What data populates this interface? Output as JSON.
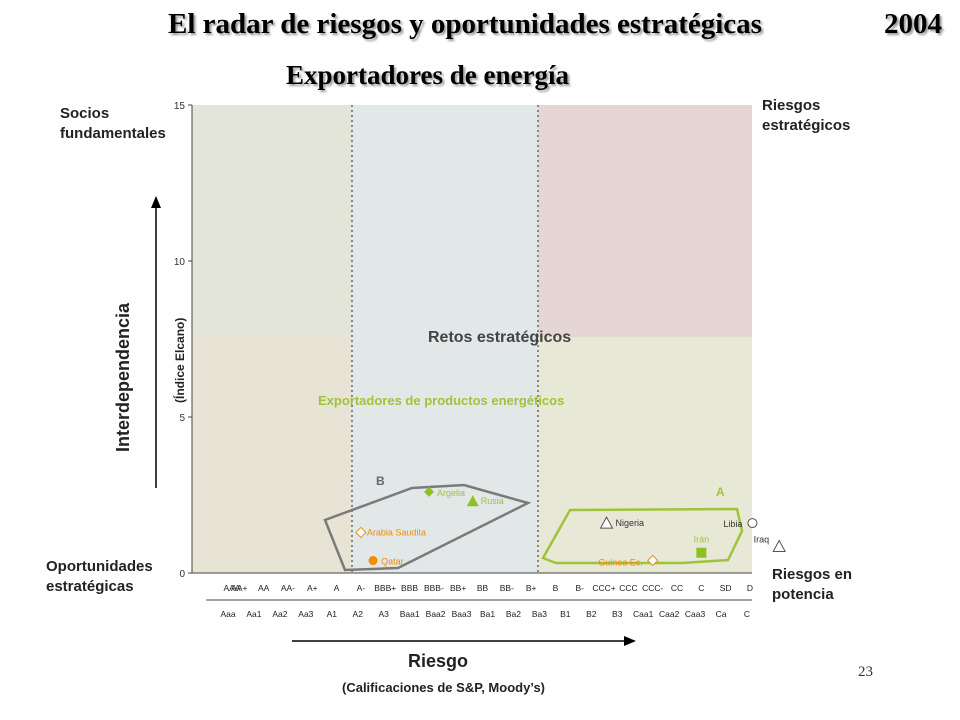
{
  "slide": {
    "title": "El radar de riesgos y oportunidades estratégicas",
    "year": "2004",
    "subtitle": "Exportadores de energía",
    "page_number": "23"
  },
  "quadrants": {
    "top_left": "Socios fundamentales",
    "top_right": "Riesgos estratégicos",
    "bottom_left": "Oportunidades estratégicas",
    "bottom_right": "Riesgos en potencia",
    "center": "Retos estratégicos"
  },
  "axes": {
    "y_title": "Interdependencia",
    "y_sub": "(Índice Elcano)",
    "x_title": "Riesgo",
    "x_sub": "(Calificaciones de S&P, Moody’s)"
  },
  "legend_label": "Exportadores de productos energéticos",
  "colors": {
    "region_green_gray": "#e2e5d7",
    "region_beige": "#e8e4d5",
    "region_blue_gray": "#e2e7e8",
    "region_pink": "#e6d6d3",
    "region_olive": "#e8e8d6",
    "group_b": "#7a7a7a",
    "group_a": "#9fc33b",
    "orange": "#f28c00",
    "green_marker": "#8fbf21",
    "label_green": "#9fc33b"
  },
  "chart_data": {
    "type": "scatter",
    "title": "Exportadores de energía",
    "xlabel": "Riesgo",
    "ylabel": "Interdependencia",
    "ylim": [
      0,
      15
    ],
    "yticks": [
      "0",
      "5",
      "10",
      "15"
    ],
    "sp_ratings": [
      "AAA",
      "AA+",
      "AA",
      "AA-",
      "A+",
      "A",
      "A-",
      "BBB+",
      "BBB",
      "BBB-",
      "BB+",
      "BB",
      "BB-",
      "B+",
      "B",
      "B-",
      "CCC+",
      "CCC",
      "CCC-",
      "CC",
      "C",
      "SD",
      "D"
    ],
    "moody_ratings": [
      "Aaa",
      "Aa1",
      "Aa2",
      "Aa3",
      "A1",
      "A2",
      "A3",
      "Baa1",
      "Baa2",
      "Baa3",
      "Ba1",
      "Ba2",
      "Ba3",
      "B1",
      "B2",
      "B3",
      "Caa1",
      "Caa2",
      "Caa3",
      "Ca",
      "C"
    ],
    "group_labels": [
      "B",
      "A"
    ],
    "points": [
      {
        "name": "Argelia",
        "x": 8.8,
        "y": 2.6,
        "marker": "diamond-filled",
        "color": "green_marker"
      },
      {
        "name": "Rusia",
        "x": 10.6,
        "y": 2.3,
        "marker": "triangle-filled",
        "color": "green_marker"
      },
      {
        "name": "Arabia Saudita",
        "x": 6.0,
        "y": 1.3,
        "marker": "diamond-open",
        "color": "orange"
      },
      {
        "name": "Qatar",
        "x": 6.5,
        "y": 0.4,
        "marker": "circle-filled",
        "color": "orange"
      },
      {
        "name": "Nigeria",
        "x": 16.1,
        "y": 1.6,
        "marker": "triangle-open",
        "color": "gray"
      },
      {
        "name": "Libia",
        "x": 22.1,
        "y": 1.6,
        "marker": "circle-open",
        "color": "gray"
      },
      {
        "name": "Guinea Ec.",
        "x": 18.0,
        "y": 0.4,
        "marker": "diamond-open",
        "color": "orange"
      },
      {
        "name": "Irán",
        "x": 20.0,
        "y": 0.65,
        "marker": "square-filled",
        "color": "green_marker"
      },
      {
        "name": "Iraq",
        "x": 23.2,
        "y": 0.85,
        "marker": "triangle-open",
        "color": "gray"
      }
    ]
  }
}
